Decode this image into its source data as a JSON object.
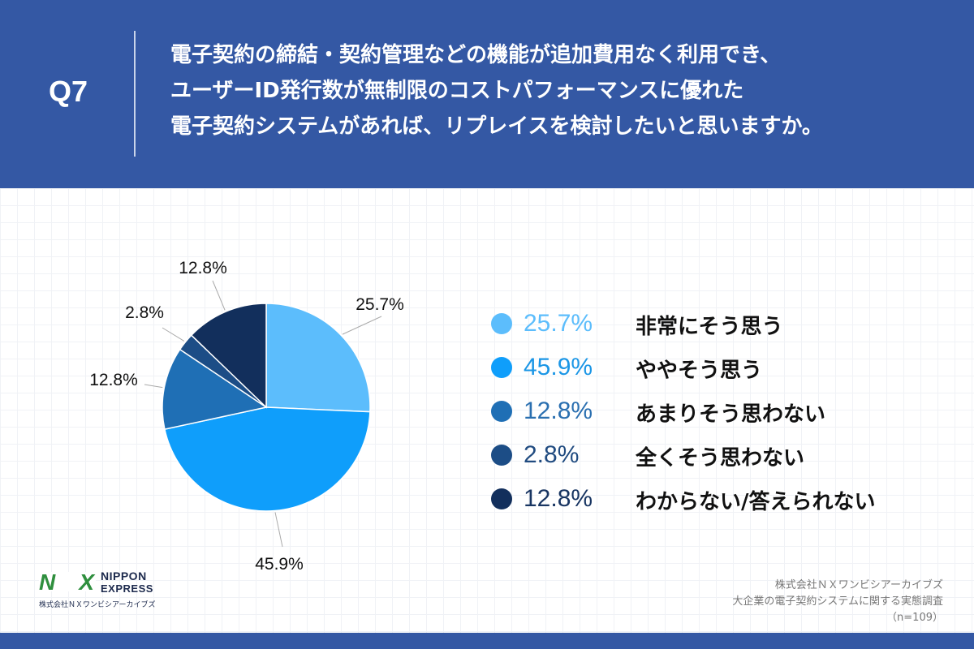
{
  "header": {
    "question_number": "Q7",
    "question_lines": [
      "電子契約の締結・契約管理などの機能が追加費用なく利用でき、",
      "ユーザーID発行数が無制限のコストパフォーマンスに優れた",
      "電子契約システムがあれば、リプレイスを検討したいと思いますか。"
    ]
  },
  "chart_data": {
    "type": "pie",
    "title": "",
    "slices": [
      {
        "label": "非常にそう思う",
        "value": 25.7,
        "display": "25.7%",
        "color": "#5cbdfc"
      },
      {
        "label": "ややそう思う",
        "value": 45.9,
        "display": "45.9%",
        "color": "#0f9efb"
      },
      {
        "label": "あまりそう思わない",
        "value": 12.8,
        "display": "12.8%",
        "color": "#1f6fb5"
      },
      {
        "label": "全くそう思わない",
        "value": 2.8,
        "display": "2.8%",
        "color": "#1c4d86"
      },
      {
        "label": "わからない/答えられない",
        "value": 12.8,
        "display": "12.8%",
        "color": "#122f5c"
      }
    ]
  },
  "legend": {
    "percent_colors": [
      "#5cbdfc",
      "#1b96e6",
      "#2a6fb0",
      "#204b80",
      "#183562"
    ]
  },
  "logo": {
    "mark": "NX",
    "name_line1": "NIPPON",
    "name_line2": "EXPRESS",
    "company": "株式会社ＮＸワンビシアーカイブズ"
  },
  "source": {
    "company": "株式会社ＮＸワンビシアーカイブズ",
    "survey": "大企業の電子契約システムに関する実態調査",
    "sample": "（n=109）"
  }
}
